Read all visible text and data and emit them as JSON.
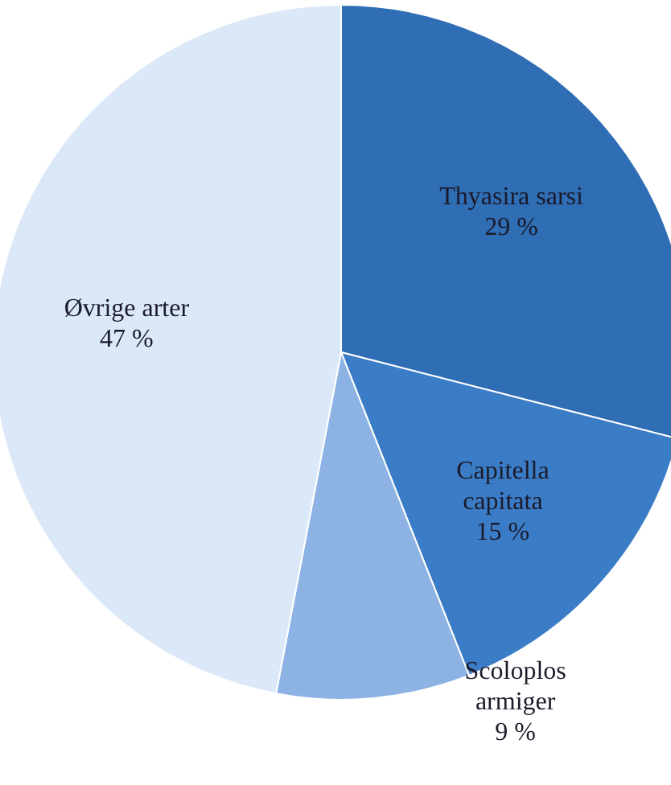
{
  "chart_data": {
    "type": "pie",
    "categories": [
      "Thyasira sarsi",
      "Capitella capitata",
      "Scoloplos armiger",
      "Øvrige arter"
    ],
    "values": [
      29,
      15,
      9,
      47
    ],
    "value_labels": [
      "29 %",
      "15 %",
      "9 %",
      "47 %"
    ],
    "colors": [
      "#2f6db5",
      "#3b7cc6",
      "#8db3e4",
      "#dbe8f8"
    ]
  }
}
